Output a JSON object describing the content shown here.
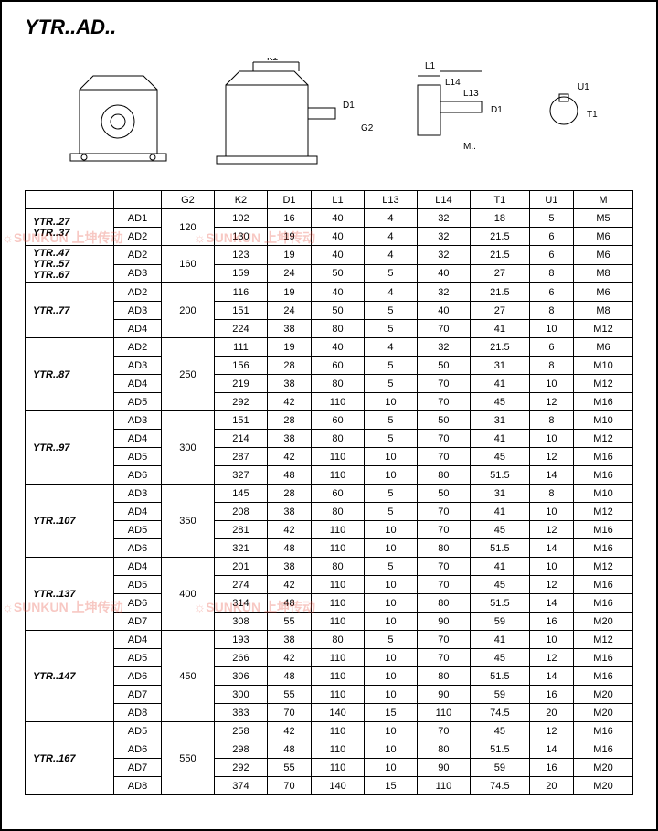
{
  "title": "YTR..AD..",
  "diagram_labels": {
    "k2": "K2",
    "d1": "D1",
    "g2": "G2",
    "l1": "L1",
    "l14": "L14",
    "l13": "L13",
    "m": "M..",
    "u1": "U1",
    "t1": "T1"
  },
  "watermark": {
    "brand": "SUNKUN",
    "cn": "上坤传动",
    "sub": "SUNKUN DRIVE"
  },
  "headers": [
    "",
    "",
    "G2",
    "K2",
    "D1",
    "L1",
    "L13",
    "L14",
    "T1",
    "U1",
    "M"
  ],
  "groups": [
    {
      "model": "YTR..27\nYTR..37",
      "g2": "120",
      "rows": [
        [
          "AD1",
          "102",
          "16",
          "40",
          "4",
          "32",
          "18",
          "5",
          "M5"
        ],
        [
          "AD2",
          "130",
          "19",
          "40",
          "4",
          "32",
          "21.5",
          "6",
          "M6"
        ]
      ]
    },
    {
      "model": "YTR..47\nYTR..57\nYTR..67",
      "g2": "160",
      "rows": [
        [
          "AD2",
          "123",
          "19",
          "40",
          "4",
          "32",
          "21.5",
          "6",
          "M6"
        ],
        [
          "AD3",
          "159",
          "24",
          "50",
          "5",
          "40",
          "27",
          "8",
          "M8"
        ]
      ]
    },
    {
      "model": "YTR..77",
      "g2": "200",
      "rows": [
        [
          "AD2",
          "116",
          "19",
          "40",
          "4",
          "32",
          "21.5",
          "6",
          "M6"
        ],
        [
          "AD3",
          "151",
          "24",
          "50",
          "5",
          "40",
          "27",
          "8",
          "M8"
        ],
        [
          "AD4",
          "224",
          "38",
          "80",
          "5",
          "70",
          "41",
          "10",
          "M12"
        ]
      ]
    },
    {
      "model": "YTR..87",
      "g2": "250",
      "rows": [
        [
          "AD2",
          "111",
          "19",
          "40",
          "4",
          "32",
          "21.5",
          "6",
          "M6"
        ],
        [
          "AD3",
          "156",
          "28",
          "60",
          "5",
          "50",
          "31",
          "8",
          "M10"
        ],
        [
          "AD4",
          "219",
          "38",
          "80",
          "5",
          "70",
          "41",
          "10",
          "M12"
        ],
        [
          "AD5",
          "292",
          "42",
          "110",
          "10",
          "70",
          "45",
          "12",
          "M16"
        ]
      ]
    },
    {
      "model": "YTR..97",
      "g2": "300",
      "rows": [
        [
          "AD3",
          "151",
          "28",
          "60",
          "5",
          "50",
          "31",
          "8",
          "M10"
        ],
        [
          "AD4",
          "214",
          "38",
          "80",
          "5",
          "70",
          "41",
          "10",
          "M12"
        ],
        [
          "AD5",
          "287",
          "42",
          "110",
          "10",
          "70",
          "45",
          "12",
          "M16"
        ],
        [
          "AD6",
          "327",
          "48",
          "110",
          "10",
          "80",
          "51.5",
          "14",
          "M16"
        ]
      ]
    },
    {
      "model": "YTR..107",
      "g2": "350",
      "rows": [
        [
          "AD3",
          "145",
          "28",
          "60",
          "5",
          "50",
          "31",
          "8",
          "M10"
        ],
        [
          "AD4",
          "208",
          "38",
          "80",
          "5",
          "70",
          "41",
          "10",
          "M12"
        ],
        [
          "AD5",
          "281",
          "42",
          "110",
          "10",
          "70",
          "45",
          "12",
          "M16"
        ],
        [
          "AD6",
          "321",
          "48",
          "110",
          "10",
          "80",
          "51.5",
          "14",
          "M16"
        ]
      ]
    },
    {
      "model": "YTR..137",
      "g2": "400",
      "rows": [
        [
          "AD4",
          "201",
          "38",
          "80",
          "5",
          "70",
          "41",
          "10",
          "M12"
        ],
        [
          "AD5",
          "274",
          "42",
          "110",
          "10",
          "70",
          "45",
          "12",
          "M16"
        ],
        [
          "AD6",
          "314",
          "48",
          "110",
          "10",
          "80",
          "51.5",
          "14",
          "M16"
        ],
        [
          "AD7",
          "308",
          "55",
          "110",
          "10",
          "90",
          "59",
          "16",
          "M20"
        ]
      ]
    },
    {
      "model": "YTR..147",
      "g2": "450",
      "rows": [
        [
          "AD4",
          "193",
          "38",
          "80",
          "5",
          "70",
          "41",
          "10",
          "M12"
        ],
        [
          "AD5",
          "266",
          "42",
          "110",
          "10",
          "70",
          "45",
          "12",
          "M16"
        ],
        [
          "AD6",
          "306",
          "48",
          "110",
          "10",
          "80",
          "51.5",
          "14",
          "M16"
        ],
        [
          "AD7",
          "300",
          "55",
          "110",
          "10",
          "90",
          "59",
          "16",
          "M20"
        ],
        [
          "AD8",
          "383",
          "70",
          "140",
          "15",
          "110",
          "74.5",
          "20",
          "M20"
        ]
      ]
    },
    {
      "model": "YTR..167",
      "g2": "550",
      "rows": [
        [
          "AD5",
          "258",
          "42",
          "110",
          "10",
          "70",
          "45",
          "12",
          "M16"
        ],
        [
          "AD6",
          "298",
          "48",
          "110",
          "10",
          "80",
          "51.5",
          "14",
          "M16"
        ],
        [
          "AD7",
          "292",
          "55",
          "110",
          "10",
          "90",
          "59",
          "16",
          "M20"
        ],
        [
          "AD8",
          "374",
          "70",
          "140",
          "15",
          "110",
          "74.5",
          "20",
          "M20"
        ]
      ]
    }
  ]
}
